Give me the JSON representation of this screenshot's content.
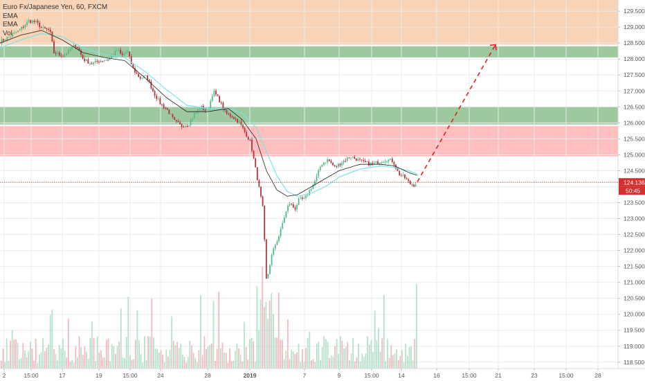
{
  "legend": {
    "title": "Euro Fx/Japanese Yen, 60, FXCM",
    "line2": "EMA",
    "line3": "EMA",
    "line4": "Vol"
  },
  "colors": {
    "up": "#53b987",
    "down": "#b1313a",
    "ema_fast": "#222222",
    "ema_slow": "#7de0e8",
    "zone_orange": "#f2a86b",
    "zone_green": "#4e9a4e",
    "zone_red": "#ff8080",
    "price_line": "#d2302f",
    "arrow": "#e01e1e",
    "vol_up": "#9fd7b8",
    "vol_down": "#eda3a8"
  },
  "price_label": "124.136",
  "countdown_label": "50:45",
  "chart_data": {
    "type": "candlestick",
    "title": "Euro Fx/Japanese Yen, 60, FXCM",
    "ylim": [
      118.3,
      129.85
    ],
    "y_ticks": [
      "129.500",
      "129.000",
      "128.500",
      "128.000",
      "127.500",
      "127.000",
      "126.500",
      "126.000",
      "125.500",
      "125.000",
      "124.500",
      "124.000",
      "123.500",
      "123.000",
      "122.500",
      "122.000",
      "121.500",
      "121.000",
      "120.500",
      "120.000",
      "119.500",
      "119.000",
      "118.500"
    ],
    "x_ticks": [
      "2",
      "15:00",
      "17",
      "19",
      "15:00",
      "24",
      "28",
      "2019",
      "7",
      "9",
      "15:00",
      "14",
      "16",
      "15:00",
      "21",
      "23",
      "15:00",
      "28"
    ],
    "last_price": 124.136,
    "zones": [
      {
        "kind": "supply",
        "from": 128.45,
        "to": 129.85
      },
      {
        "kind": "demand",
        "from": 128.05,
        "to": 128.4
      },
      {
        "kind": "demand",
        "from": 125.95,
        "to": 126.5
      },
      {
        "kind": "resistance",
        "from": 124.95,
        "to": 125.9
      }
    ],
    "projection": {
      "from": 124.15,
      "to": 128.45
    },
    "price_path": [
      [
        0,
        128.55
      ],
      [
        14,
        128.7
      ],
      [
        28,
        128.9
      ],
      [
        42,
        129.2
      ],
      [
        52,
        129.15
      ],
      [
        62,
        128.95
      ],
      [
        72,
        128.9
      ],
      [
        78,
        128.2
      ],
      [
        92,
        128.1
      ],
      [
        104,
        128.35
      ],
      [
        110,
        128.45
      ],
      [
        120,
        128.0
      ],
      [
        132,
        127.85
      ],
      [
        145,
        127.95
      ],
      [
        158,
        128.0
      ],
      [
        170,
        128.3
      ],
      [
        176,
        128.1
      ],
      [
        184,
        128.25
      ],
      [
        192,
        127.7
      ],
      [
        202,
        127.4
      ],
      [
        212,
        127.45
      ],
      [
        222,
        126.95
      ],
      [
        232,
        126.6
      ],
      [
        242,
        126.4
      ],
      [
        252,
        126.05
      ],
      [
        262,
        125.9
      ],
      [
        272,
        125.95
      ],
      [
        280,
        126.25
      ],
      [
        290,
        126.5
      ],
      [
        300,
        126.35
      ],
      [
        308,
        127.0
      ],
      [
        316,
        126.75
      ],
      [
        326,
        126.3
      ],
      [
        336,
        126.2
      ],
      [
        346,
        126.0
      ],
      [
        354,
        125.7
      ],
      [
        362,
        125.4
      ],
      [
        368,
        124.7
      ],
      [
        374,
        124.0
      ],
      [
        380,
        123.3
      ],
      [
        385,
        121.0
      ],
      [
        392,
        121.8
      ],
      [
        398,
        122.2
      ],
      [
        404,
        122.5
      ],
      [
        410,
        123.0
      ],
      [
        418,
        123.5
      ],
      [
        426,
        123.3
      ],
      [
        432,
        123.6
      ],
      [
        440,
        123.6
      ],
      [
        448,
        123.9
      ],
      [
        456,
        124.2
      ],
      [
        464,
        124.7
      ],
      [
        474,
        124.85
      ],
      [
        484,
        124.6
      ],
      [
        496,
        124.8
      ],
      [
        506,
        124.95
      ],
      [
        516,
        124.85
      ],
      [
        526,
        124.75
      ],
      [
        538,
        124.7
      ],
      [
        550,
        124.8
      ],
      [
        560,
        124.85
      ],
      [
        568,
        124.8
      ],
      [
        576,
        124.4
      ],
      [
        584,
        124.3
      ],
      [
        592,
        124.1
      ],
      [
        598,
        124.05
      ],
      [
        603,
        124.14
      ]
    ],
    "ema_fast_path": [
      [
        0,
        128.5
      ],
      [
        30,
        128.75
      ],
      [
        60,
        128.9
      ],
      [
        90,
        128.6
      ],
      [
        120,
        128.2
      ],
      [
        150,
        128.05
      ],
      [
        180,
        127.95
      ],
      [
        210,
        127.4
      ],
      [
        240,
        126.8
      ],
      [
        270,
        126.35
      ],
      [
        300,
        126.35
      ],
      [
        330,
        126.45
      ],
      [
        350,
        126.1
      ],
      [
        370,
        125.5
      ],
      [
        385,
        124.5
      ],
      [
        400,
        123.9
      ],
      [
        415,
        123.7
      ],
      [
        430,
        123.75
      ],
      [
        450,
        124.0
      ],
      [
        470,
        124.25
      ],
      [
        490,
        124.5
      ],
      [
        520,
        124.7
      ],
      [
        550,
        124.7
      ],
      [
        570,
        124.65
      ],
      [
        590,
        124.45
      ],
      [
        603,
        124.35
      ]
    ],
    "ema_slow_path": [
      [
        0,
        128.35
      ],
      [
        30,
        128.6
      ],
      [
        60,
        128.8
      ],
      [
        90,
        128.7
      ],
      [
        120,
        128.35
      ],
      [
        150,
        128.15
      ],
      [
        180,
        128.05
      ],
      [
        210,
        127.6
      ],
      [
        240,
        127.05
      ],
      [
        270,
        126.55
      ],
      [
        300,
        126.45
      ],
      [
        330,
        126.45
      ],
      [
        350,
        126.3
      ],
      [
        370,
        125.85
      ],
      [
        385,
        125.1
      ],
      [
        400,
        124.35
      ],
      [
        415,
        123.85
      ],
      [
        430,
        123.7
      ],
      [
        450,
        123.8
      ],
      [
        470,
        124.0
      ],
      [
        490,
        124.3
      ],
      [
        520,
        124.55
      ],
      [
        550,
        124.65
      ],
      [
        570,
        124.6
      ],
      [
        590,
        124.5
      ],
      [
        603,
        124.4
      ]
    ]
  }
}
